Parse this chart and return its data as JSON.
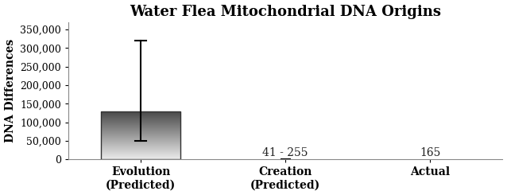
{
  "title": "Water Flea Mitochondrial DNA Origins",
  "ylabel": "DNA Differences",
  "categories": [
    "Evolution\n(Predicted)",
    "Creation\n(Predicted)",
    "Actual"
  ],
  "bar_value": 130000,
  "bar_error_high": 320000,
  "bar_error_low": 50000,
  "creation_value": 148,
  "creation_label": "41 - 255",
  "actual_label": "165",
  "ylim": [
    0,
    370000
  ],
  "yticks": [
    0,
    50000,
    100000,
    150000,
    200000,
    250000,
    300000,
    350000
  ],
  "ytick_labels": [
    "0",
    "50,000",
    "100,000",
    "150,000",
    "200,000",
    "250,000",
    "300,000",
    "350,000"
  ],
  "background_color": "#ffffff",
  "title_fontsize": 13,
  "label_fontsize": 10,
  "tick_fontsize": 9,
  "annot_fontsize": 10
}
